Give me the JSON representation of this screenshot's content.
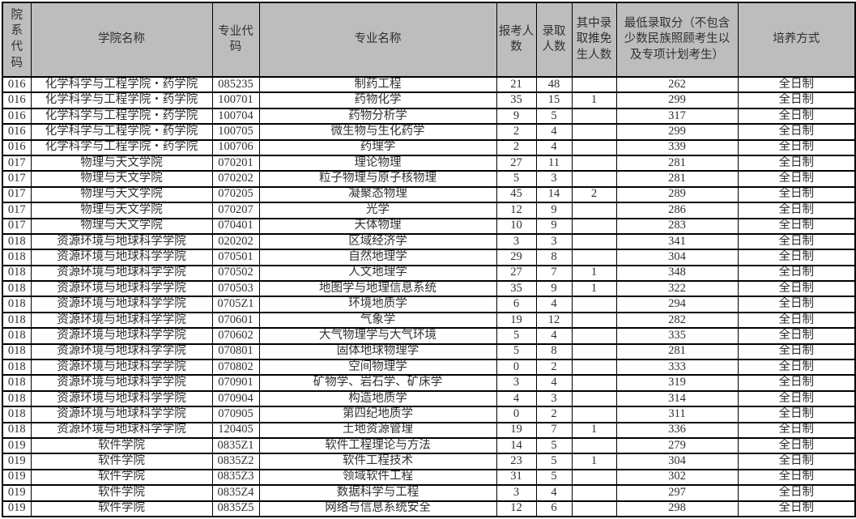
{
  "colors": {
    "header_bg": "#bdbdbd",
    "border": "#000000",
    "text": "#303030",
    "row_bg": "#ffffff"
  },
  "table": {
    "columns": [
      {
        "key": "dept_code",
        "label": "院系代码"
      },
      {
        "key": "college_name",
        "label": "学院名称"
      },
      {
        "key": "major_code",
        "label": "专业代码"
      },
      {
        "key": "major_name",
        "label": "专业名称"
      },
      {
        "key": "applicants",
        "label": "报考人数"
      },
      {
        "key": "admitted",
        "label": "录取人数"
      },
      {
        "key": "recommended_exempt",
        "label": "其中录取推免生人数"
      },
      {
        "key": "min_score",
        "label": "最低录取分（不包含少数民族照顾考生以及专项计划考生）"
      },
      {
        "key": "study_mode",
        "label": "培养方式"
      }
    ],
    "rows": [
      [
        "016",
        "化学科学与工程学院・药学院",
        "085235",
        "制药工程",
        "21",
        "48",
        "",
        "262",
        "全日制"
      ],
      [
        "016",
        "化学科学与工程学院・药学院",
        "100701",
        "药物化学",
        "35",
        "15",
        "1",
        "299",
        "全日制"
      ],
      [
        "016",
        "化学科学与工程学院・药学院",
        "100704",
        "药物分析学",
        "9",
        "5",
        "",
        "317",
        "全日制"
      ],
      [
        "016",
        "化学科学与工程学院・药学院",
        "100705",
        "微生物与生化药学",
        "2",
        "4",
        "",
        "299",
        "全日制"
      ],
      [
        "016",
        "化学科学与工程学院・药学院",
        "100706",
        "药理学",
        "2",
        "4",
        "",
        "339",
        "全日制"
      ],
      [
        "017",
        "物理与天文学院",
        "070201",
        "理论物理",
        "27",
        "11",
        "",
        "281",
        "全日制"
      ],
      [
        "017",
        "物理与天文学院",
        "070202",
        "粒子物理与原子核物理",
        "5",
        "3",
        "",
        "281",
        "全日制"
      ],
      [
        "017",
        "物理与天文学院",
        "070205",
        "凝聚态物理",
        "45",
        "14",
        "2",
        "289",
        "全日制"
      ],
      [
        "017",
        "物理与天文学院",
        "070207",
        "光学",
        "12",
        "9",
        "",
        "286",
        "全日制"
      ],
      [
        "017",
        "物理与天文学院",
        "070401",
        "天体物理",
        "10",
        "9",
        "",
        "283",
        "全日制"
      ],
      [
        "018",
        "资源环境与地球科学学院",
        "020202",
        "区域经济学",
        "3",
        "3",
        "",
        "341",
        "全日制"
      ],
      [
        "018",
        "资源环境与地球科学学院",
        "070501",
        "自然地理学",
        "29",
        "8",
        "",
        "304",
        "全日制"
      ],
      [
        "018",
        "资源环境与地球科学学院",
        "070502",
        "人文地理学",
        "27",
        "7",
        "1",
        "348",
        "全日制"
      ],
      [
        "018",
        "资源环境与地球科学学院",
        "070503",
        "地图学与地理信息系统",
        "35",
        "9",
        "1",
        "322",
        "全日制"
      ],
      [
        "018",
        "资源环境与地球科学学院",
        "0705Z1",
        "环境地质学",
        "6",
        "4",
        "",
        "294",
        "全日制"
      ],
      [
        "018",
        "资源环境与地球科学学院",
        "070601",
        "气象学",
        "19",
        "12",
        "",
        "282",
        "全日制"
      ],
      [
        "018",
        "资源环境与地球科学学院",
        "070602",
        "大气物理学与大气环境",
        "5",
        "4",
        "",
        "335",
        "全日制"
      ],
      [
        "018",
        "资源环境与地球科学学院",
        "070801",
        "固体地球物理学",
        "5",
        "8",
        "",
        "281",
        "全日制"
      ],
      [
        "018",
        "资源环境与地球科学学院",
        "070802",
        "空间物理学",
        "0",
        "2",
        "",
        "333",
        "全日制"
      ],
      [
        "018",
        "资源环境与地球科学学院",
        "070901",
        "矿物学、岩石学、矿床学",
        "3",
        "4",
        "",
        "319",
        "全日制"
      ],
      [
        "018",
        "资源环境与地球科学学院",
        "070904",
        "构造地质学",
        "4",
        "3",
        "",
        "314",
        "全日制"
      ],
      [
        "018",
        "资源环境与地球科学学院",
        "070905",
        "第四纪地质学",
        "0",
        "2",
        "",
        "311",
        "全日制"
      ],
      [
        "018",
        "资源环境与地球科学学院",
        "120405",
        "土地资源管理",
        "19",
        "7",
        "1",
        "336",
        "全日制"
      ],
      [
        "019",
        "软件学院",
        "0835Z1",
        "软件工程理论与方法",
        "14",
        "5",
        "",
        "279",
        "全日制"
      ],
      [
        "019",
        "软件学院",
        "0835Z2",
        "软件工程技术",
        "23",
        "5",
        "1",
        "304",
        "全日制"
      ],
      [
        "019",
        "软件学院",
        "0835Z3",
        "领域软件工程",
        "31",
        "5",
        "",
        "302",
        "全日制"
      ],
      [
        "019",
        "软件学院",
        "0835Z4",
        "数据科学与工程",
        "3",
        "4",
        "",
        "297",
        "全日制"
      ],
      [
        "019",
        "软件学院",
        "0835Z5",
        "网络与信息系统安全",
        "12",
        "6",
        "",
        "298",
        "全日制"
      ]
    ]
  }
}
